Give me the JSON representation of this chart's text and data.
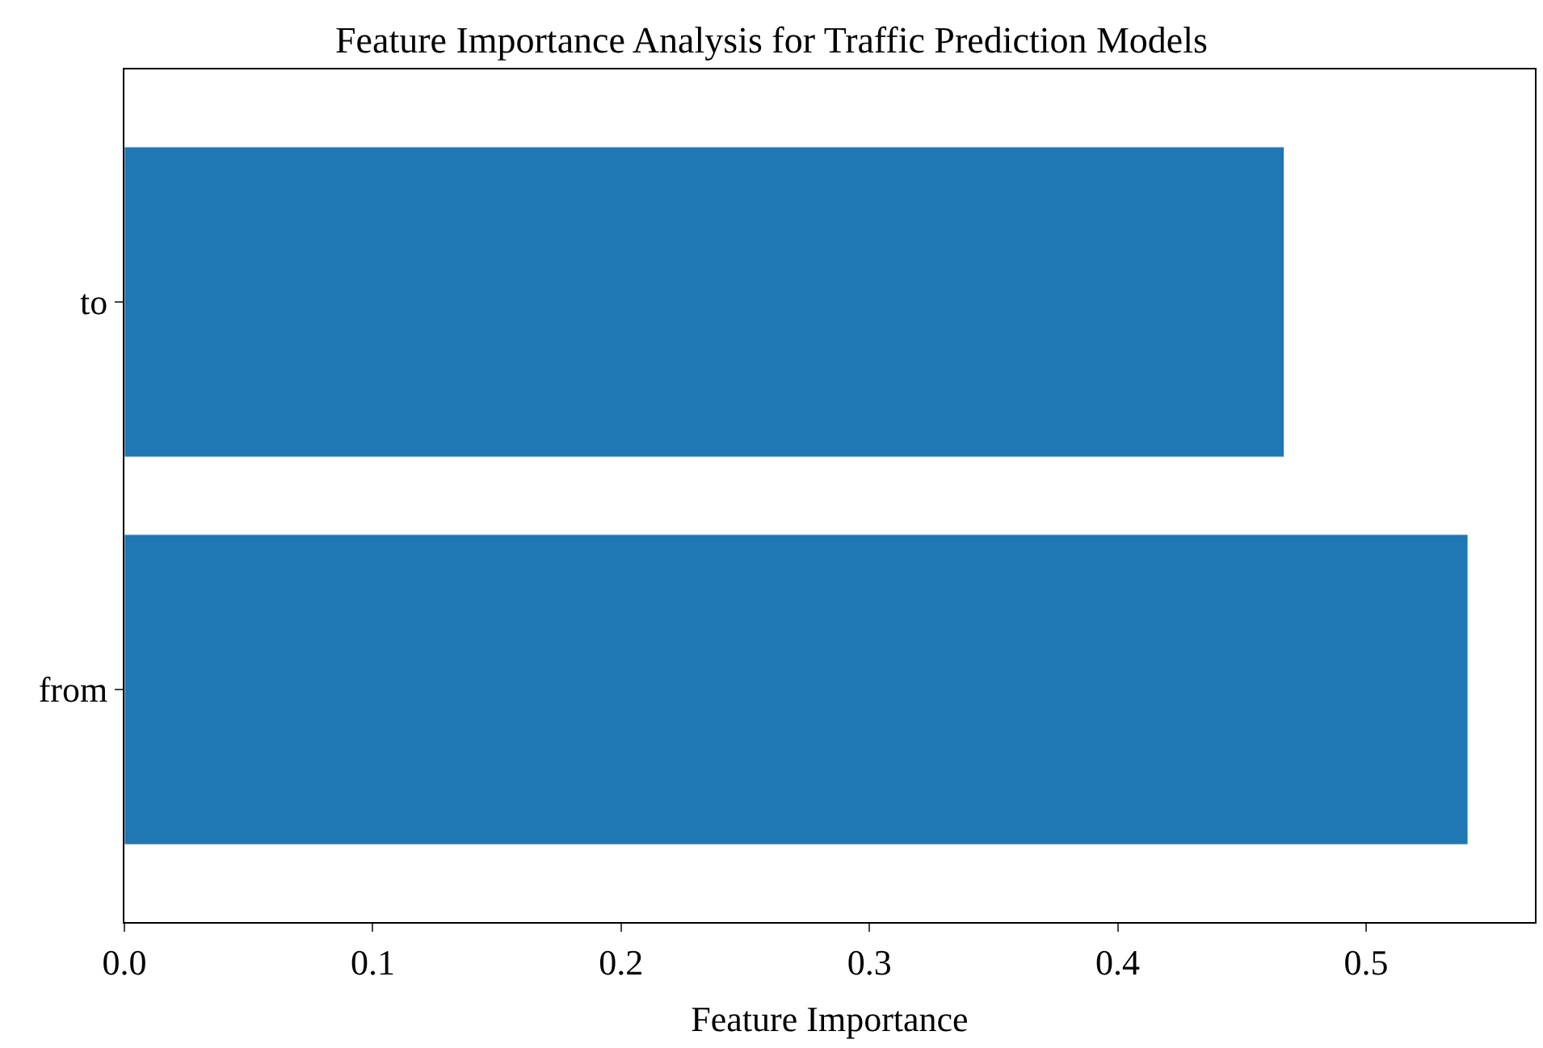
{
  "chart_data": {
    "type": "bar",
    "orientation": "horizontal",
    "title": "Feature Importance Analysis for Traffic Prediction Models",
    "xlabel": "Feature Importance",
    "categories": [
      "to",
      "from"
    ],
    "values": [
      0.467,
      0.541
    ],
    "color": "#1f77b4",
    "xlim": [
      0,
      0.568
    ],
    "xticks": [
      {
        "value": 0,
        "label": "0.0"
      },
      0.1,
      0.2,
      0.3,
      0.4,
      0.5
    ]
  }
}
